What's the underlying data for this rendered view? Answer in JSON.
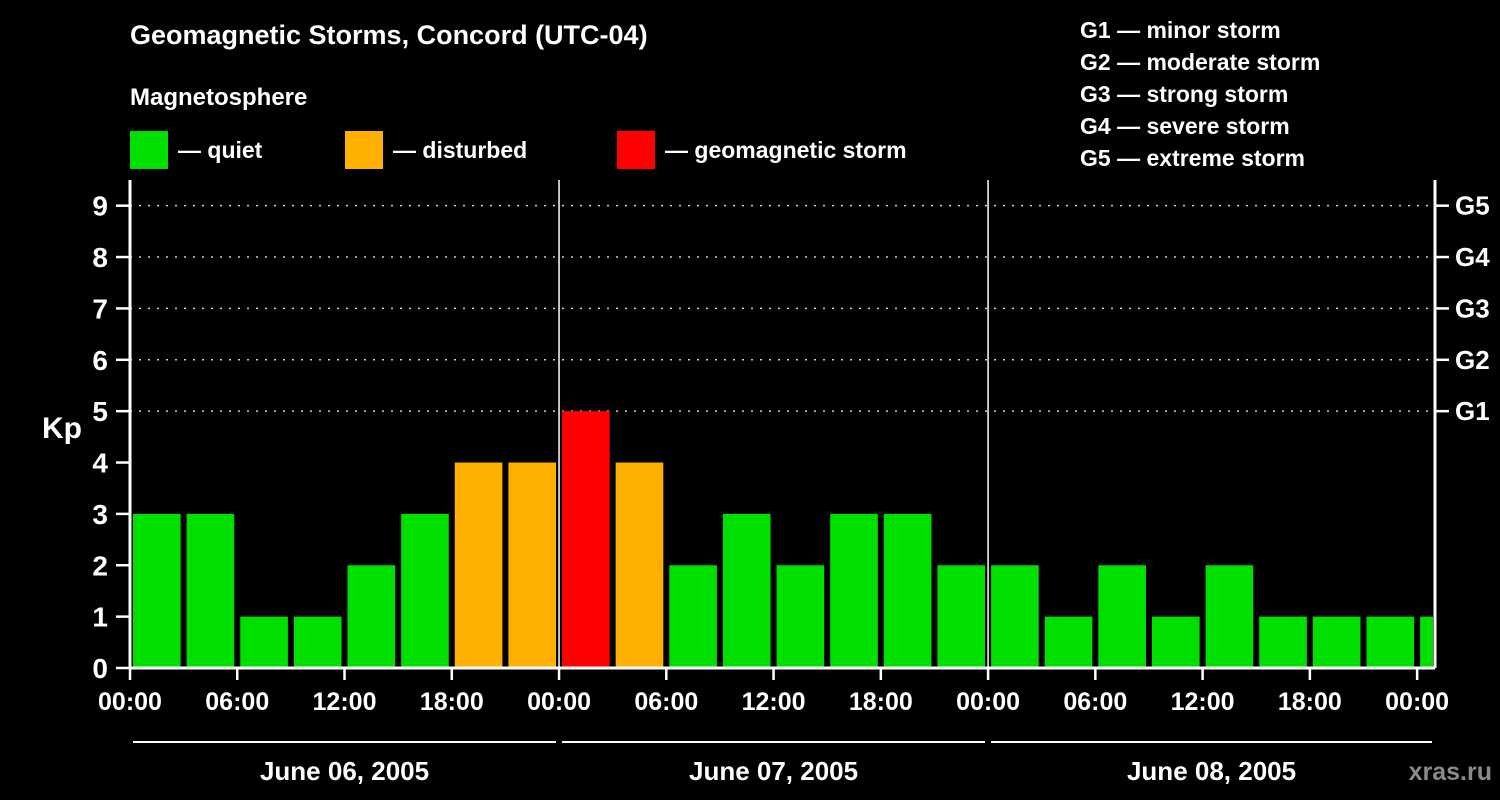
{
  "title": "Geomagnetic Storms, Concord (UTC-04)",
  "legend": {
    "heading": "Magnetosphere",
    "items": [
      {
        "name": "quiet",
        "label": "— quiet",
        "color": "#00e000"
      },
      {
        "name": "disturbed",
        "label": "— disturbed",
        "color": "#ffb000"
      },
      {
        "name": "storm",
        "label": "— geomagnetic storm",
        "color": "#ff0000"
      }
    ]
  },
  "g_scale_legend": [
    "G1 — minor storm",
    "G2 — moderate storm",
    "G3 — strong storm",
    "G4 — severe storm",
    "G5 — extreme storm"
  ],
  "watermark": "xras.ru",
  "chart_data": {
    "type": "bar",
    "title": "Geomagnetic Storms, Concord (UTC-04)",
    "ylabel": "Kp",
    "ylim": [
      0,
      9.5
    ],
    "y_ticks": [
      0,
      1,
      2,
      3,
      4,
      5,
      6,
      7,
      8,
      9
    ],
    "g_levels": [
      {
        "label": "G1",
        "kp": 5
      },
      {
        "label": "G2",
        "kp": 6
      },
      {
        "label": "G3",
        "kp": 7
      },
      {
        "label": "G4",
        "kp": 8
      },
      {
        "label": "G5",
        "kp": 9
      }
    ],
    "x_hours_total": 73,
    "x_tick_hours": [
      0,
      6,
      12,
      18,
      24,
      30,
      36,
      42,
      48,
      54,
      60,
      66,
      72
    ],
    "x_tick_labels": [
      "00:00",
      "06:00",
      "12:00",
      "18:00",
      "00:00",
      "06:00",
      "12:00",
      "18:00",
      "00:00",
      "06:00",
      "12:00",
      "18:00",
      "00:00"
    ],
    "days": [
      {
        "label": "June 06, 2005",
        "start_hour": 0,
        "end_hour": 24
      },
      {
        "label": "June 07, 2005",
        "start_hour": 24,
        "end_hour": 48
      },
      {
        "label": "June 08, 2005",
        "start_hour": 48,
        "end_hour": 73
      }
    ],
    "bars": [
      {
        "start_hour": 0,
        "kp": 3
      },
      {
        "start_hour": 3,
        "kp": 3
      },
      {
        "start_hour": 6,
        "kp": 1
      },
      {
        "start_hour": 9,
        "kp": 1
      },
      {
        "start_hour": 12,
        "kp": 2
      },
      {
        "start_hour": 15,
        "kp": 3
      },
      {
        "start_hour": 18,
        "kp": 4
      },
      {
        "start_hour": 21,
        "kp": 4
      },
      {
        "start_hour": 24,
        "kp": 5
      },
      {
        "start_hour": 27,
        "kp": 4
      },
      {
        "start_hour": 30,
        "kp": 2
      },
      {
        "start_hour": 33,
        "kp": 3
      },
      {
        "start_hour": 36,
        "kp": 2
      },
      {
        "start_hour": 39,
        "kp": 3
      },
      {
        "start_hour": 42,
        "kp": 3
      },
      {
        "start_hour": 45,
        "kp": 2
      },
      {
        "start_hour": 48,
        "kp": 2
      },
      {
        "start_hour": 51,
        "kp": 1
      },
      {
        "start_hour": 54,
        "kp": 2
      },
      {
        "start_hour": 57,
        "kp": 1
      },
      {
        "start_hour": 60,
        "kp": 2
      },
      {
        "start_hour": 63,
        "kp": 1
      },
      {
        "start_hour": 66,
        "kp": 1
      },
      {
        "start_hour": 69,
        "kp": 1
      },
      {
        "start_hour": 72,
        "kp": 1,
        "partial": true
      }
    ],
    "colors": {
      "quiet": "#00e000",
      "disturbed": "#ffb000",
      "storm": "#ff0000",
      "background": "#000000",
      "text": "#ffffff"
    },
    "color_rule": {
      "quiet_max_kp": 3,
      "disturbed_kp": 4,
      "storm_min_kp": 5
    },
    "gridlines": {
      "dotted_at_kp": [
        5,
        6,
        7,
        8,
        9
      ],
      "vertical_day_lines_hours": [
        24,
        48
      ]
    },
    "legend_position": "top"
  }
}
